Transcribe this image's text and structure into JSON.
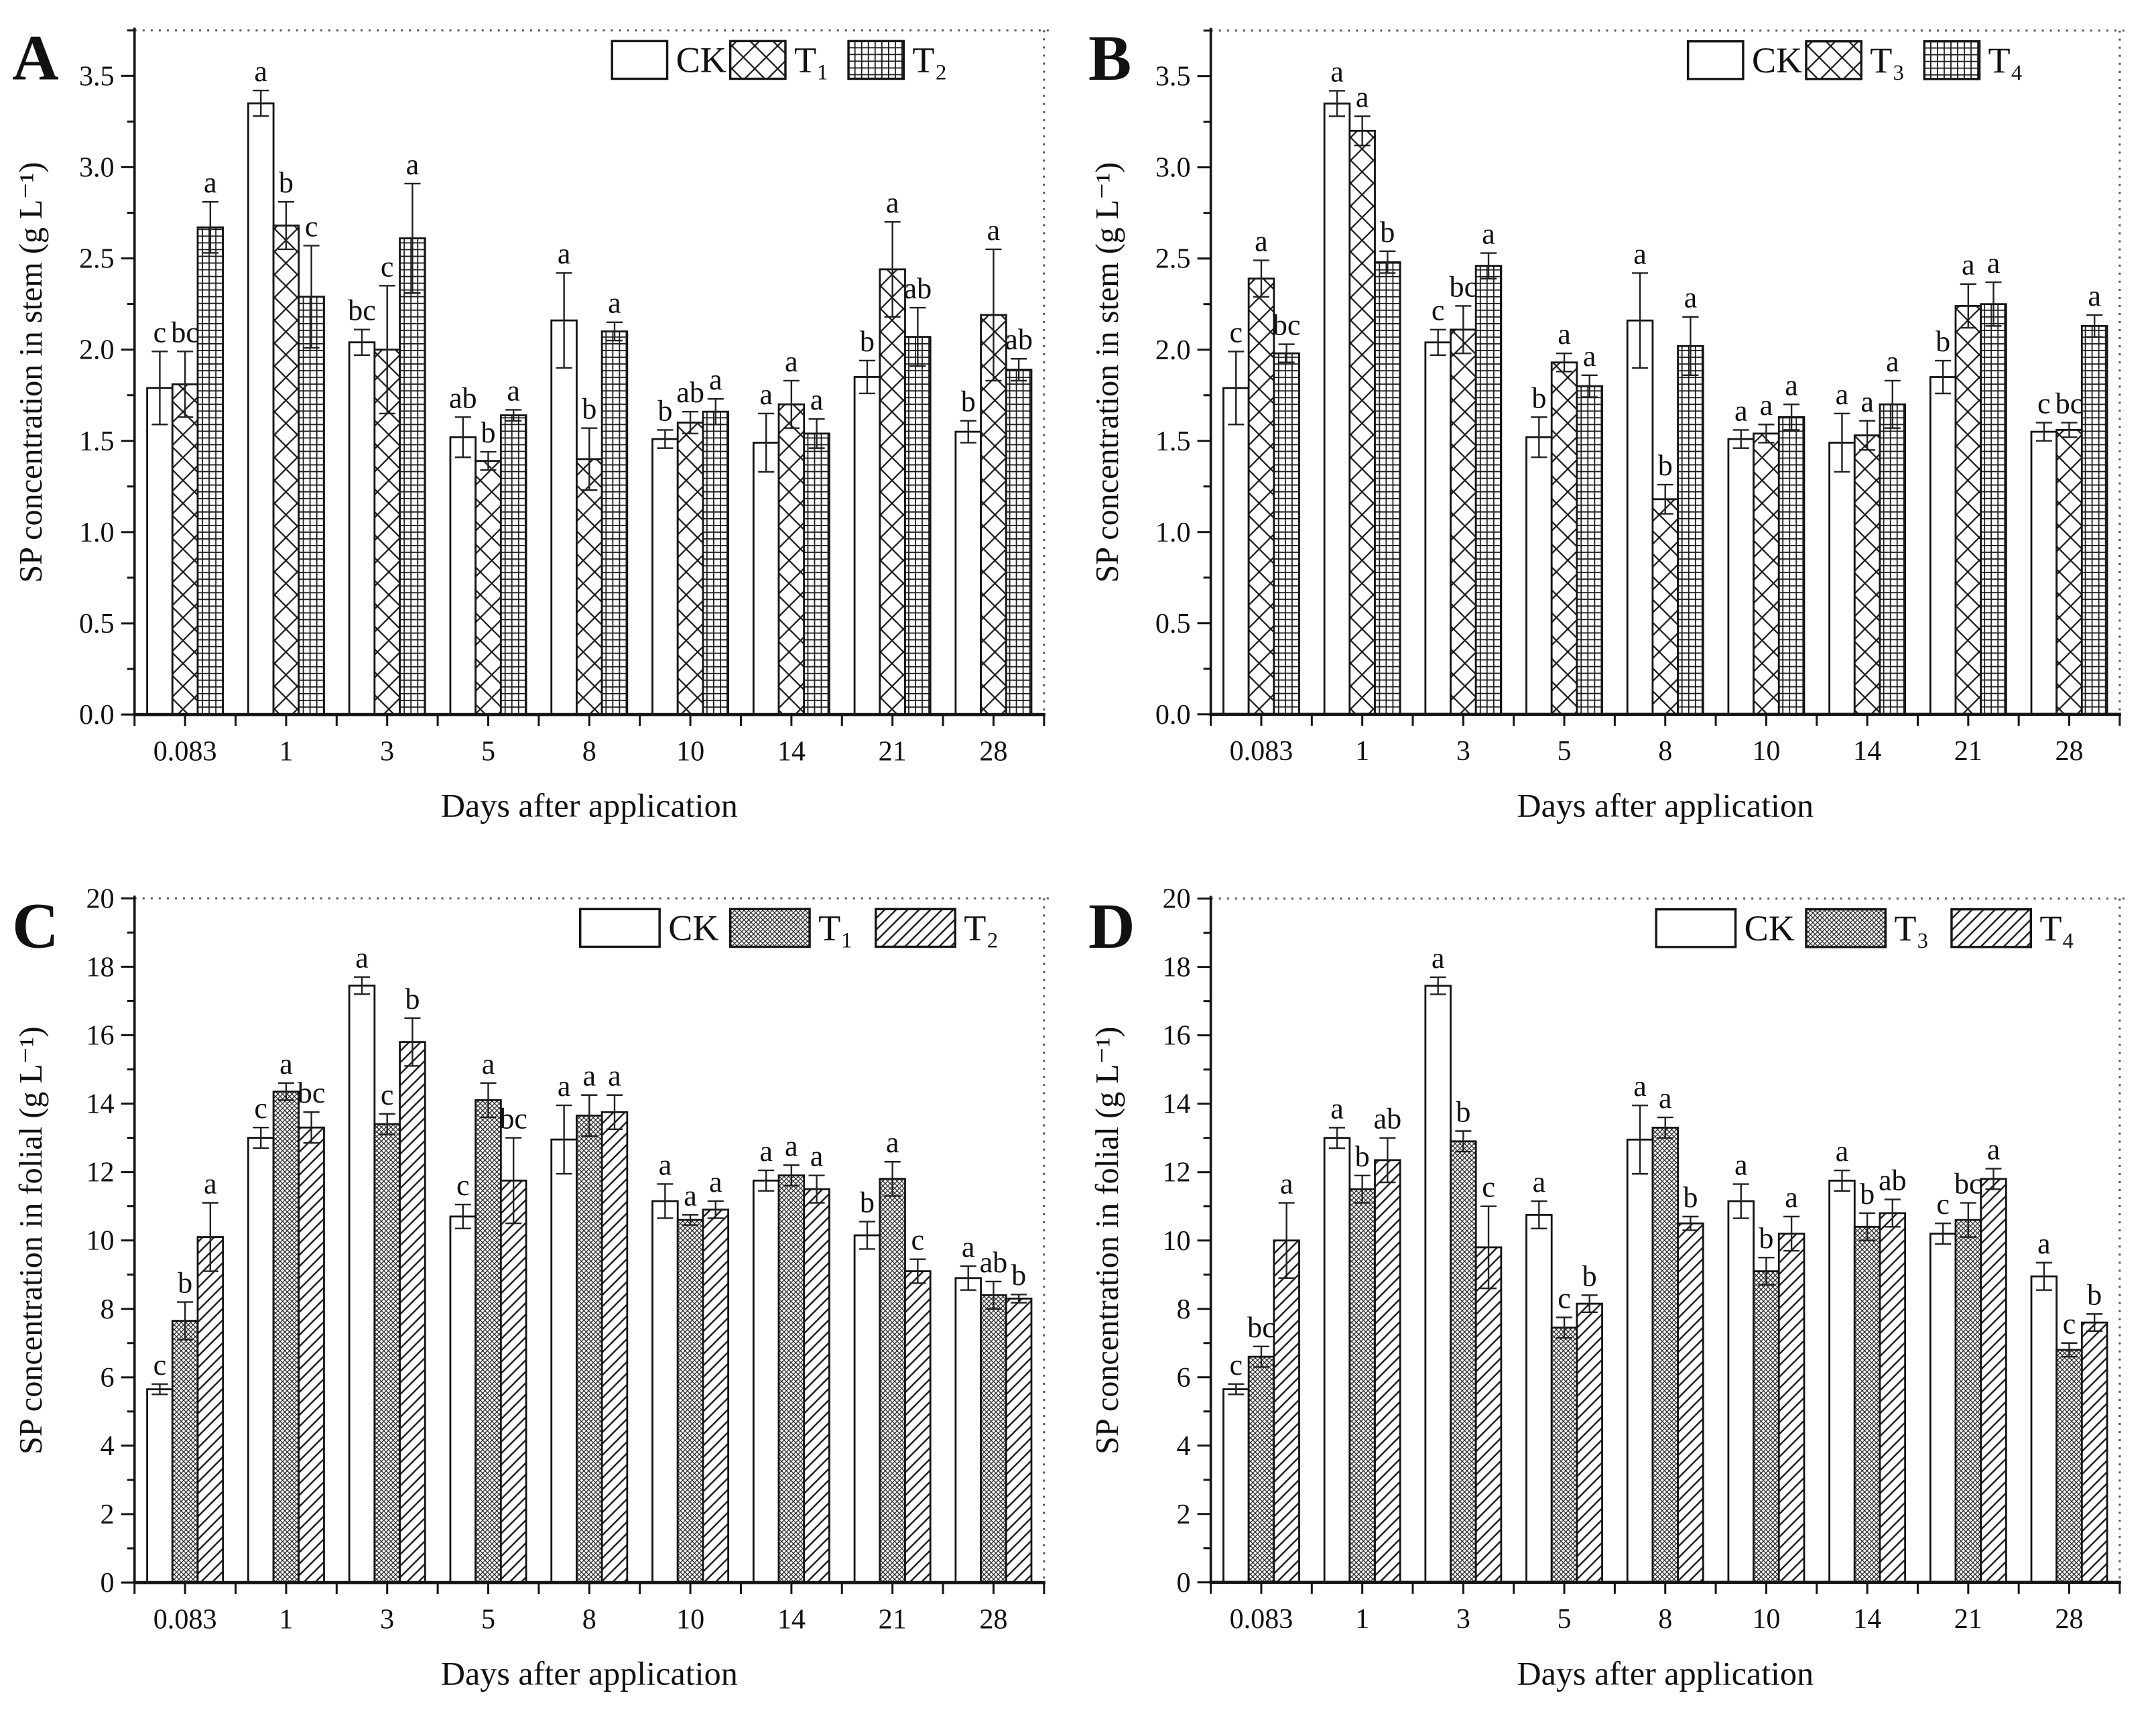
{
  "figure_title": "",
  "accent_colors": {
    "ink": "#111111",
    "axis": "#141414",
    "dotted_border": "#555555"
  },
  "chart_data": [
    {
      "panel_label": "A",
      "type": "bar",
      "title": "",
      "xlabel": "Days after application",
      "ylabel": "SP concentration in stem (g L⁻¹)",
      "ylim": [
        0,
        3.75
      ],
      "ytick_step": 0.5,
      "ytick_minor_step": 0.25,
      "ytick_max_label": 3.5,
      "ytick_decimals": 1,
      "grid": false,
      "legend_position": "top-right-inside",
      "categories": [
        "0.083",
        "1",
        "3",
        "5",
        "8",
        "10",
        "14",
        "21",
        "28"
      ],
      "series": [
        {
          "name": "CK",
          "pattern": "plain",
          "values": [
            1.79,
            3.35,
            2.04,
            1.52,
            2.16,
            1.51,
            1.49,
            1.85,
            1.55
          ],
          "errors": [
            0.2,
            0.07,
            0.07,
            0.11,
            0.26,
            0.05,
            0.16,
            0.09,
            0.06
          ],
          "letters": [
            "c",
            "a",
            "bc",
            "ab",
            "a",
            "b",
            "a",
            "b",
            "b"
          ]
        },
        {
          "name": "T₁",
          "pattern": "xhatch",
          "values": [
            1.81,
            2.68,
            2.0,
            1.39,
            1.4,
            1.6,
            1.7,
            2.44,
            2.19
          ],
          "errors": [
            0.18,
            0.13,
            0.35,
            0.05,
            0.17,
            0.06,
            0.13,
            0.26,
            0.36
          ],
          "letters": [
            "bc",
            "b",
            "c",
            "b",
            "b",
            "ab",
            "a",
            "a",
            "a"
          ]
        },
        {
          "name": "T₂",
          "pattern": "grid",
          "values": [
            2.67,
            2.29,
            2.61,
            1.64,
            2.1,
            1.66,
            1.54,
            2.07,
            1.89
          ],
          "errors": [
            0.14,
            0.28,
            0.3,
            0.03,
            0.05,
            0.07,
            0.08,
            0.16,
            0.06
          ],
          "letters": [
            "a",
            "c",
            "a",
            "a",
            "a",
            "a",
            "a",
            "ab",
            "ab"
          ]
        }
      ]
    },
    {
      "panel_label": "B",
      "type": "bar",
      "title": "",
      "xlabel": "Days after application",
      "ylabel": "SP concentration in stem (g L⁻¹)",
      "ylim": [
        0,
        3.75
      ],
      "ytick_step": 0.5,
      "ytick_minor_step": 0.25,
      "ytick_max_label": 3.5,
      "ytick_decimals": 1,
      "grid": false,
      "legend_position": "top-right-inside",
      "categories": [
        "0.083",
        "1",
        "3",
        "5",
        "8",
        "10",
        "14",
        "21",
        "28"
      ],
      "series": [
        {
          "name": "CK",
          "pattern": "plain",
          "values": [
            1.79,
            3.35,
            2.04,
            1.52,
            2.16,
            1.51,
            1.49,
            1.85,
            1.55
          ],
          "errors": [
            0.2,
            0.07,
            0.07,
            0.11,
            0.26,
            0.05,
            0.16,
            0.09,
            0.05
          ],
          "letters": [
            "c",
            "a",
            "c",
            "b",
            "a",
            "a",
            "a",
            "b",
            "c"
          ]
        },
        {
          "name": "T₃",
          "pattern": "xhatch",
          "values": [
            2.39,
            3.2,
            2.11,
            1.93,
            1.18,
            1.54,
            1.53,
            2.24,
            1.56
          ],
          "errors": [
            0.1,
            0.08,
            0.13,
            0.05,
            0.08,
            0.05,
            0.08,
            0.12,
            0.04
          ],
          "letters": [
            "a",
            "a",
            "bc",
            "a",
            "b",
            "a",
            "a",
            "a",
            "bc"
          ]
        },
        {
          "name": "T₄",
          "pattern": "grid",
          "values": [
            1.98,
            2.48,
            2.46,
            1.8,
            2.02,
            1.63,
            1.7,
            2.25,
            2.13
          ],
          "errors": [
            0.05,
            0.06,
            0.07,
            0.06,
            0.16,
            0.07,
            0.13,
            0.12,
            0.06
          ],
          "letters": [
            "bc",
            "b",
            "a",
            "a",
            "a",
            "a",
            "a",
            "a",
            "a"
          ]
        }
      ]
    },
    {
      "panel_label": "C",
      "type": "bar",
      "title": "",
      "xlabel": "Days after application",
      "ylabel": "SP concentration in folial (g L⁻¹)",
      "ylim": [
        0,
        20
      ],
      "ytick_step": 2,
      "ytick_minor_step": 1,
      "ytick_max_label": 20,
      "ytick_decimals": 0,
      "grid": false,
      "legend_position": "top-right-inside",
      "categories": [
        "0.083",
        "1",
        "3",
        "5",
        "8",
        "10",
        "14",
        "21",
        "28"
      ],
      "series": [
        {
          "name": "CK",
          "pattern": "plain",
          "values": [
            5.65,
            13.0,
            17.45,
            10.7,
            12.95,
            11.15,
            11.75,
            10.15,
            8.9
          ],
          "errors": [
            0.15,
            0.3,
            0.25,
            0.35,
            1.0,
            0.5,
            0.3,
            0.4,
            0.35
          ],
          "letters": [
            "c",
            "c",
            "a",
            "c",
            "a",
            "a",
            "a",
            "b",
            "a"
          ]
        },
        {
          "name": "T₁",
          "pattern": "dense",
          "values": [
            7.65,
            14.35,
            13.4,
            14.1,
            13.65,
            10.6,
            11.9,
            11.8,
            8.4
          ],
          "errors": [
            0.55,
            0.25,
            0.3,
            0.5,
            0.6,
            0.15,
            0.3,
            0.5,
            0.4
          ],
          "letters": [
            "b",
            "a",
            "c",
            "a",
            "a",
            "a",
            "a",
            "a",
            "ab"
          ]
        },
        {
          "name": "T₂",
          "pattern": "diag",
          "values": [
            10.1,
            13.3,
            15.8,
            11.75,
            13.75,
            10.9,
            11.5,
            9.1,
            8.3
          ],
          "errors": [
            1.0,
            0.45,
            0.7,
            1.25,
            0.5,
            0.25,
            0.4,
            0.35,
            0.12
          ],
          "letters": [
            "a",
            "bc",
            "b",
            "bc",
            "a",
            "a",
            "a",
            "c",
            "b"
          ]
        }
      ]
    },
    {
      "panel_label": "D",
      "type": "bar",
      "title": "",
      "xlabel": "Days after application",
      "ylabel": "SP concentration in folial (g L⁻¹)",
      "ylim": [
        0,
        20
      ],
      "ytick_step": 2,
      "ytick_minor_step": 1,
      "ytick_max_label": 20,
      "ytick_decimals": 0,
      "grid": false,
      "legend_position": "top-right-inside",
      "categories": [
        "0.083",
        "1",
        "3",
        "5",
        "8",
        "10",
        "14",
        "21",
        "28"
      ],
      "series": [
        {
          "name": "CK",
          "pattern": "plain",
          "values": [
            5.65,
            13.0,
            17.45,
            10.75,
            12.95,
            11.15,
            11.75,
            10.2,
            8.95
          ],
          "errors": [
            0.15,
            0.3,
            0.25,
            0.4,
            1.0,
            0.5,
            0.3,
            0.3,
            0.4
          ],
          "letters": [
            "c",
            "a",
            "a",
            "a",
            "a",
            "a",
            "a",
            "c",
            "a"
          ]
        },
        {
          "name": "T₃",
          "pattern": "dense",
          "values": [
            6.6,
            11.5,
            12.9,
            7.45,
            13.3,
            9.1,
            10.4,
            10.6,
            6.8
          ],
          "errors": [
            0.3,
            0.4,
            0.3,
            0.3,
            0.3,
            0.4,
            0.4,
            0.5,
            0.2
          ],
          "letters": [
            "bc",
            "b",
            "b",
            "c",
            "a",
            "b",
            "b",
            "bc",
            "c"
          ]
        },
        {
          "name": "T₄",
          "pattern": "diag",
          "values": [
            10.0,
            12.35,
            9.8,
            8.15,
            10.5,
            10.2,
            10.8,
            11.8,
            7.6
          ],
          "errors": [
            1.1,
            0.65,
            1.2,
            0.25,
            0.2,
            0.5,
            0.4,
            0.3,
            0.25
          ],
          "letters": [
            "a",
            "ab",
            "c",
            "b",
            "b",
            "a",
            "ab",
            "a",
            "b"
          ]
        }
      ]
    }
  ]
}
